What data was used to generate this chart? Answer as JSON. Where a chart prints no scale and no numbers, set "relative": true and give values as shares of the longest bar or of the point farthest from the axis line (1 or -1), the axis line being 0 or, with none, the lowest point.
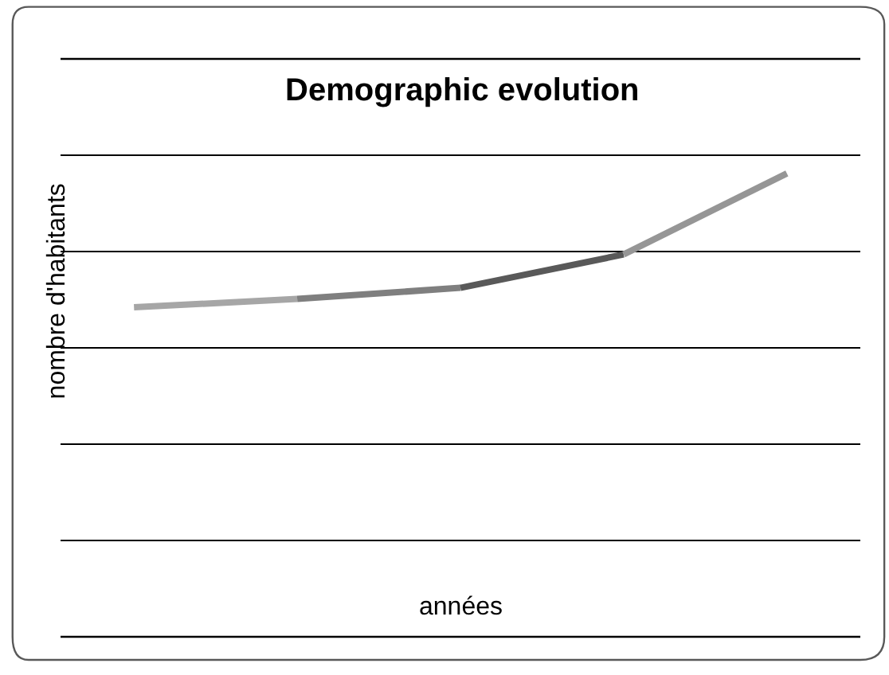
{
  "chart_data": {
    "type": "line",
    "title": "Demographic evolution",
    "xlabel": "années",
    "ylabel": "nombre d'habitants",
    "relative": true,
    "grid": "y",
    "categories": [
      null,
      null,
      null,
      null,
      null
    ],
    "series": [
      {
        "color": "#a6a6a6",
        "values": [
          0.711,
          0.729,
          null,
          null,
          null
        ]
      },
      {
        "color": "#7f7f7f",
        "values": [
          null,
          0.729,
          0.753,
          null,
          null
        ]
      },
      {
        "color": "#595959",
        "values": [
          null,
          null,
          0.753,
          0.825,
          null
        ]
      },
      {
        "color": "#969696",
        "values": [
          null,
          null,
          null,
          0.825,
          1
        ]
      }
    ]
  }
}
